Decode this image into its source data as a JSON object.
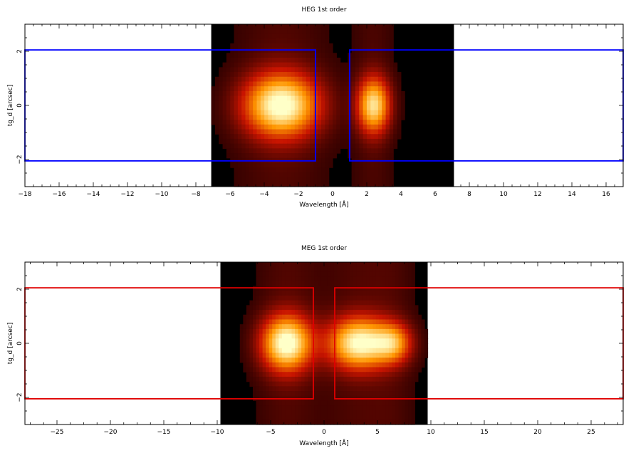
{
  "chart_data": [
    {
      "type": "heatmap",
      "title": "HEG 1st order",
      "xlabel": "Wavelength [Å]",
      "ylabel": "tg_d [arcsec]",
      "xlim": [
        -18,
        17
      ],
      "ylim": [
        -3,
        3
      ],
      "xticks": [
        -18,
        -16,
        -14,
        -12,
        -10,
        -8,
        -6,
        -4,
        -2,
        0,
        2,
        4,
        6,
        8,
        10,
        12,
        14,
        16
      ],
      "yticks": [
        -2,
        0,
        2
      ],
      "image_extent_x": [
        -7.1,
        7.1
      ],
      "region_color": "#0000ff",
      "regions": [
        {
          "x": [
            -18,
            -1.0
          ],
          "y": [
            -2.05,
            2.05
          ]
        },
        {
          "x": [
            1.0,
            17
          ],
          "y": [
            -2.05,
            2.05
          ]
        }
      ],
      "blobs": [
        {
          "x": -3.0,
          "y": 0.0,
          "sx": 1.5,
          "sy": 0.8,
          "amp": 1.0
        },
        {
          "x": 2.4,
          "y": 0.0,
          "sx": 0.65,
          "sy": 0.7,
          "amp": 0.85
        }
      ]
    },
    {
      "type": "heatmap",
      "title": "MEG 1st order",
      "xlabel": "Wavelength [Å]",
      "ylabel": "tg_d [arcsec]",
      "xlim": [
        -28,
        28
      ],
      "ylim": [
        -3,
        3
      ],
      "xticks": [
        -25,
        -20,
        -15,
        -10,
        -5,
        0,
        5,
        10,
        15,
        20,
        25
      ],
      "yticks": [
        -2,
        0,
        2
      ],
      "image_extent_x": [
        -9.7,
        9.7
      ],
      "region_color": "#e00000",
      "regions": [
        {
          "x": [
            -28,
            -1.0
          ],
          "y": [
            -2.05,
            2.05
          ]
        },
        {
          "x": [
            1.0,
            28
          ],
          "y": [
            -2.05,
            2.05
          ]
        }
      ],
      "blobs": [
        {
          "x": -3.5,
          "y": 0.0,
          "sx": 1.6,
          "sy": 0.7,
          "amp": 1.0
        },
        {
          "x": 3.3,
          "y": 0.0,
          "sx": 2.0,
          "sy": 0.65,
          "amp": 0.95
        },
        {
          "x": 6.5,
          "y": 0.0,
          "sx": 1.2,
          "sy": 0.5,
          "amp": 0.55
        }
      ]
    }
  ]
}
